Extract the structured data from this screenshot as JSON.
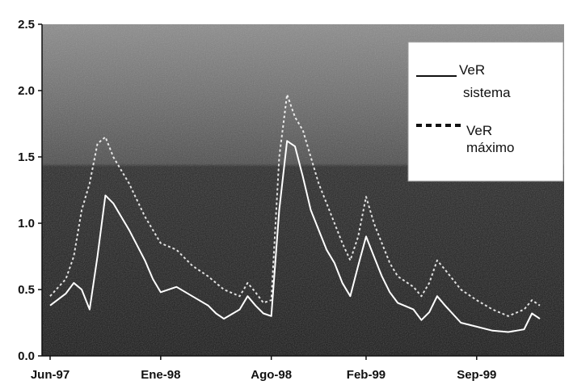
{
  "chart_data": {
    "type": "line",
    "title": "",
    "xlabel": "",
    "ylabel": "",
    "ylim": [
      0,
      2.5
    ],
    "y_ticks": [
      "0.0",
      "0.5",
      "1.0",
      "1.5",
      "2.0",
      "2.5"
    ],
    "x_ticks": [
      "Jun-97",
      "Ene-98",
      "Ago-98",
      "Feb-99",
      "Sep-99"
    ],
    "x_tick_months": [
      0,
      7,
      14,
      20,
      27
    ],
    "legend_position": "top-right",
    "grid": false,
    "series": [
      {
        "name": "VeR sistema",
        "style": "solid",
        "color": "#ffffff",
        "points": [
          [
            0,
            0.38
          ],
          [
            1,
            0.47
          ],
          [
            1.5,
            0.55
          ],
          [
            2,
            0.5
          ],
          [
            2.5,
            0.35
          ],
          [
            3,
            0.75
          ],
          [
            3.5,
            1.21
          ],
          [
            4,
            1.15
          ],
          [
            5,
            0.95
          ],
          [
            6,
            0.72
          ],
          [
            6.5,
            0.58
          ],
          [
            7,
            0.48
          ],
          [
            8,
            0.52
          ],
          [
            9,
            0.45
          ],
          [
            10,
            0.38
          ],
          [
            10.5,
            0.32
          ],
          [
            11,
            0.28
          ],
          [
            12,
            0.35
          ],
          [
            12.5,
            0.45
          ],
          [
            13,
            0.38
          ],
          [
            13.5,
            0.32
          ],
          [
            14,
            0.3
          ],
          [
            14.5,
            1.1
          ],
          [
            15,
            1.62
          ],
          [
            15.5,
            1.58
          ],
          [
            16,
            1.35
          ],
          [
            16.5,
            1.1
          ],
          [
            17,
            0.95
          ],
          [
            17.5,
            0.8
          ],
          [
            18,
            0.7
          ],
          [
            18.5,
            0.55
          ],
          [
            19,
            0.45
          ],
          [
            19.5,
            0.68
          ],
          [
            20,
            0.9
          ],
          [
            20.5,
            0.75
          ],
          [
            21,
            0.6
          ],
          [
            21.5,
            0.48
          ],
          [
            22,
            0.4
          ],
          [
            23,
            0.35
          ],
          [
            23.5,
            0.27
          ],
          [
            24,
            0.33
          ],
          [
            24.5,
            0.45
          ],
          [
            25,
            0.38
          ],
          [
            26,
            0.25
          ],
          [
            27,
            0.22
          ],
          [
            28,
            0.19
          ],
          [
            29,
            0.18
          ],
          [
            30,
            0.2
          ],
          [
            30.5,
            0.32
          ],
          [
            31,
            0.28
          ]
        ]
      },
      {
        "name": "VeR máximo",
        "style": "dashed",
        "color": "#ffffff",
        "points": [
          [
            0,
            0.45
          ],
          [
            1,
            0.58
          ],
          [
            1.5,
            0.75
          ],
          [
            2,
            1.1
          ],
          [
            2.5,
            1.3
          ],
          [
            3,
            1.6
          ],
          [
            3.5,
            1.65
          ],
          [
            4,
            1.5
          ],
          [
            5,
            1.3
          ],
          [
            6,
            1.05
          ],
          [
            7,
            0.85
          ],
          [
            8,
            0.8
          ],
          [
            9,
            0.68
          ],
          [
            10,
            0.6
          ],
          [
            11,
            0.5
          ],
          [
            12,
            0.45
          ],
          [
            12.5,
            0.55
          ],
          [
            13,
            0.48
          ],
          [
            13.5,
            0.4
          ],
          [
            14,
            0.42
          ],
          [
            14.5,
            1.5
          ],
          [
            15,
            1.97
          ],
          [
            15.5,
            1.8
          ],
          [
            16,
            1.7
          ],
          [
            16.5,
            1.5
          ],
          [
            17,
            1.3
          ],
          [
            17.5,
            1.15
          ],
          [
            18,
            1.0
          ],
          [
            18.5,
            0.85
          ],
          [
            19,
            0.72
          ],
          [
            19.5,
            0.9
          ],
          [
            20,
            1.2
          ],
          [
            20.5,
            1.0
          ],
          [
            21,
            0.85
          ],
          [
            21.5,
            0.7
          ],
          [
            22,
            0.6
          ],
          [
            23,
            0.52
          ],
          [
            23.5,
            0.45
          ],
          [
            24,
            0.55
          ],
          [
            24.5,
            0.72
          ],
          [
            25,
            0.65
          ],
          [
            26,
            0.5
          ],
          [
            27,
            0.42
          ],
          [
            28,
            0.35
          ],
          [
            29,
            0.3
          ],
          [
            30,
            0.35
          ],
          [
            30.5,
            0.42
          ],
          [
            31,
            0.38
          ]
        ]
      }
    ]
  },
  "legend": {
    "solid_label_line1": "VeR",
    "solid_label_line2": "sistema",
    "dashed_label_line1": "VeR",
    "dashed_label_line2": "máximo"
  },
  "colors": {
    "plot_top": "#7e7e7e",
    "plot_bottom": "#1a1a1a",
    "series_line": "#ffffff",
    "legend_bg": "#ffffff"
  }
}
